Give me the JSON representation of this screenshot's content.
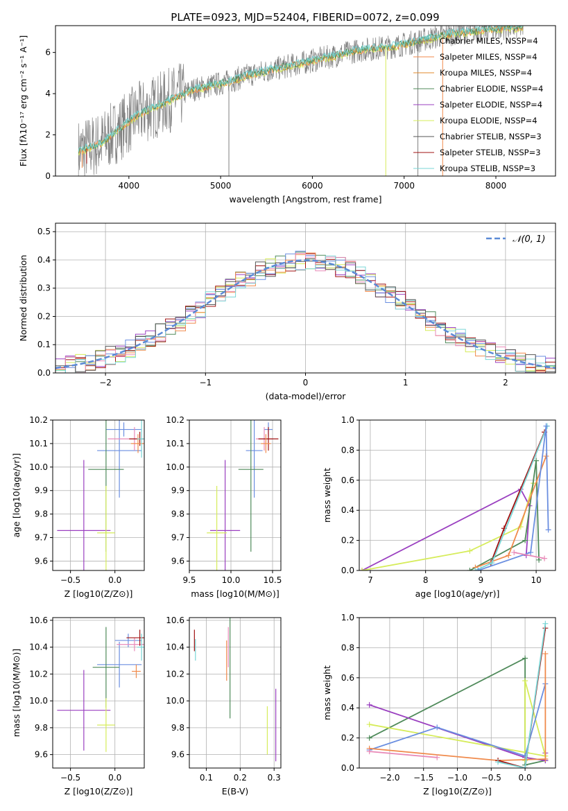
{
  "figure_title": "PLATE=0923, MJD=52404, FIBERID=0072, z=0.099",
  "colors": {
    "chabrier_miles": "#7f7f7f",
    "salpeter_miles": "#f08a4b",
    "kroupa_miles": "#e08a2a",
    "chabrier_elodie": "#4f8a5a",
    "salpeter_elodie": "#9a3fc0",
    "kroupa_elodie": "#d6ec5a",
    "chabrier_stelib": "#555555",
    "salpeter_stelib": "#a01010",
    "kroupa_stelib": "#7ad6d6",
    "blue": "#6a8ee0",
    "pink": "#e88ab8",
    "normal": "#5b8ad6"
  },
  "chart_data": [
    {
      "id": "spectrum",
      "type": "line",
      "xlabel": "wavelength [Angstrom, rest frame]",
      "ylabel": "Flux [fλ10⁻¹⁷ erg cm⁻² s⁻¹ A⁻¹]",
      "xlim": [
        3200,
        8650
      ],
      "ylim": [
        0,
        7.3
      ],
      "xticks": [
        4000,
        5000,
        6000,
        7000,
        8000
      ],
      "yticks": [
        0,
        2,
        4,
        6
      ],
      "legend_position": "top-right",
      "legend": [
        {
          "label": "Chabrier MILES, NSSP=4",
          "color": "chabrier_miles"
        },
        {
          "label": "Salpeter MILES, NSSP=4",
          "color": "salpeter_miles"
        },
        {
          "label": "Kroupa MILES, NSSP=4",
          "color": "kroupa_miles"
        },
        {
          "label": "Chabrier ELODIE, NSSP=4",
          "color": "chabrier_elodie"
        },
        {
          "label": "Salpeter ELODIE, NSSP=4",
          "color": "salpeter_elodie"
        },
        {
          "label": "Kroupa ELODIE, NSSP=4",
          "color": "kroupa_elodie"
        },
        {
          "label": "Chabrier STELIB, NSSP=3",
          "color": "chabrier_stelib"
        },
        {
          "label": "Salpeter STELIB, NSSP=3",
          "color": "salpeter_stelib"
        },
        {
          "label": "Kroupa STELIB, NSSP=3",
          "color": "kroupa_stelib"
        }
      ],
      "continuum": {
        "x": [
          3450,
          3700,
          3900,
          4100,
          4300,
          4500,
          4700,
          4900,
          5100,
          5300,
          5500,
          5700,
          5900,
          6100,
          6300,
          6500,
          6700,
          6900,
          7100,
          7300,
          7500,
          7700,
          7900,
          8100,
          8300
        ],
        "y": [
          1.2,
          1.6,
          2.3,
          3.0,
          3.4,
          3.8,
          4.2,
          4.4,
          4.6,
          4.9,
          5.1,
          5.3,
          5.5,
          5.7,
          5.9,
          6.1,
          6.2,
          6.3,
          6.5,
          6.7,
          6.9,
          7.0,
          7.1,
          7.2,
          7.2
        ]
      },
      "spikes": [
        {
          "x": 3490,
          "y": 0.4,
          "color": "salpeter_miles"
        },
        {
          "x": 3540,
          "y": 0.6,
          "color": "salpeter_stelib"
        },
        {
          "x": 5090,
          "y": 0,
          "color": "chabrier_miles"
        },
        {
          "x": 6800,
          "y": 0,
          "color": "kroupa_elodie"
        },
        {
          "x": 7150,
          "y": 0,
          "color": "chabrier_miles"
        },
        {
          "x": 7420,
          "y": 0,
          "color": "salpeter_miles"
        }
      ]
    },
    {
      "id": "residuals",
      "type": "histogram",
      "xlabel": "(data-model)/error",
      "ylabel": "Normed distribution",
      "xlim": [
        -2.5,
        2.5
      ],
      "ylim": [
        0,
        0.53
      ],
      "xticks": [
        -2,
        -1,
        0,
        1,
        2
      ],
      "yticks": [
        0.0,
        0.1,
        0.2,
        0.3,
        0.4,
        0.5
      ],
      "legend_position": "top-right",
      "legend_label": "𝒩(0, 1)",
      "bin_width": 0.1
    },
    {
      "id": "age_vs_Z",
      "type": "errorbar",
      "xlabel": "Z [log10(Z/Z⊙)]",
      "ylabel": "age  [log10(age/yr)]",
      "xlim": [
        -0.7,
        0.33
      ],
      "ylim": [
        9.56,
        10.2
      ],
      "xticks": [
        -0.5,
        0.0
      ],
      "yticks": [
        9.6,
        9.7,
        9.8,
        9.9,
        10.0,
        10.1,
        10.2
      ],
      "points": [
        {
          "x": 0.1,
          "y": 10.16,
          "xerr": 0.2,
          "yerr": 0.03,
          "color": "blue"
        },
        {
          "x": 0.05,
          "y": 10.07,
          "xerr": 0.25,
          "yerr": 0.2,
          "color": "blue"
        },
        {
          "x": 0.22,
          "y": 10.12,
          "xerr": 0.3,
          "yerr": 0.05,
          "color": "pink"
        },
        {
          "x": 0.28,
          "y": 10.12,
          "xerr": 0.12,
          "yerr": 0.03,
          "color": "salpeter_stelib"
        },
        {
          "x": 0.26,
          "y": 10.1,
          "xerr": 0.08,
          "yerr": 0.04,
          "color": "salpeter_miles"
        },
        {
          "x": 0.3,
          "y": 10.12,
          "xerr": 0.05,
          "yerr": 0.08,
          "color": "kroupa_stelib"
        },
        {
          "x": -0.1,
          "y": 9.99,
          "xerr": 0.2,
          "yerr": 0.35,
          "color": "chabrier_elodie"
        },
        {
          "x": -0.35,
          "y": 9.73,
          "xerr": 0.3,
          "yerr": 0.3,
          "color": "salpeter_elodie"
        },
        {
          "x": -0.1,
          "y": 9.72,
          "xerr": 0.1,
          "yerr": 0.2,
          "color": "kroupa_elodie"
        }
      ]
    },
    {
      "id": "age_vs_mass",
      "type": "errorbar",
      "xlabel": "mass [log10(M/M⊙)]",
      "ylabel": "",
      "xlim": [
        9.5,
        10.6
      ],
      "ylim": [
        9.56,
        10.2
      ],
      "xticks": [
        9.5,
        10.0,
        10.5
      ],
      "yticks": [
        9.6,
        9.7,
        9.8,
        9.9,
        10.0,
        10.1,
        10.2
      ],
      "points": [
        {
          "x": 10.45,
          "y": 10.16,
          "xerr": 0.05,
          "yerr": 0.03,
          "color": "blue"
        },
        {
          "x": 10.28,
          "y": 10.07,
          "xerr": 0.1,
          "yerr": 0.2,
          "color": "blue"
        },
        {
          "x": 10.4,
          "y": 10.12,
          "xerr": 0.1,
          "yerr": 0.05,
          "color": "pink"
        },
        {
          "x": 10.45,
          "y": 10.12,
          "xerr": 0.12,
          "yerr": 0.05,
          "color": "salpeter_stelib"
        },
        {
          "x": 10.42,
          "y": 10.1,
          "xerr": 0.06,
          "yerr": 0.04,
          "color": "salpeter_miles"
        },
        {
          "x": 10.24,
          "y": 9.99,
          "xerr": 0.15,
          "yerr": 0.35,
          "color": "chabrier_elodie"
        },
        {
          "x": 9.93,
          "y": 9.73,
          "xerr": 0.18,
          "yerr": 0.3,
          "color": "salpeter_elodie"
        },
        {
          "x": 9.83,
          "y": 9.72,
          "xerr": 0.12,
          "yerr": 0.2,
          "color": "kroupa_elodie"
        }
      ]
    },
    {
      "id": "mass_weight_vs_age",
      "type": "line",
      "xlabel": "age  [log10(age/yr)]",
      "ylabel": "mass weight",
      "xlim": [
        6.8,
        10.35
      ],
      "ylim": [
        0,
        1.0
      ],
      "xticks": [
        7,
        8,
        9,
        10
      ],
      "yticks": [
        0.0,
        0.2,
        0.4,
        0.6,
        0.8,
        1.0
      ],
      "series": [
        {
          "color": "salpeter_elodie",
          "x": [
            6.85,
            9.72,
            9.88,
            9.82
          ],
          "y": [
            0.0,
            0.54,
            0.43,
            0.1
          ]
        },
        {
          "color": "kroupa_elodie",
          "x": [
            6.85,
            8.8,
            9.72,
            9.95
          ],
          "y": [
            0.0,
            0.13,
            0.29,
            0.58
          ]
        },
        {
          "color": "salpeter_stelib",
          "x": [
            9.18,
            9.42,
            10.15
          ],
          "y": [
            0.05,
            0.28,
            0.92
          ]
        },
        {
          "color": "chabrier_elodie",
          "x": [
            8.8,
            9.8,
            10.0,
            10.05
          ],
          "y": [
            0.0,
            0.2,
            0.73,
            0.07
          ]
        },
        {
          "color": "salpeter_miles",
          "x": [
            8.9,
            9.5,
            10.18
          ],
          "y": [
            0.02,
            0.1,
            0.76
          ]
        },
        {
          "color": "kroupa_stelib",
          "x": [
            8.9,
            9.2,
            10.2
          ],
          "y": [
            0.0,
            0.05,
            0.96
          ]
        },
        {
          "color": "blue",
          "x": [
            8.95,
            9.9,
            10.18,
            10.22
          ],
          "y": [
            0.0,
            0.12,
            0.96,
            0.27
          ]
        },
        {
          "color": "pink",
          "x": [
            9.6,
            10.15
          ],
          "y": [
            0.12,
            0.08
          ]
        }
      ]
    },
    {
      "id": "mass_vs_Z",
      "type": "errorbar",
      "xlabel": "Z [log10(Z/Z⊙)]",
      "ylabel": "mass [log10(M/M⊙)]",
      "xlim": [
        -0.7,
        0.33
      ],
      "ylim": [
        9.5,
        10.62
      ],
      "xticks": [
        -0.5,
        0.0
      ],
      "yticks": [
        9.6,
        9.8,
        10.0,
        10.2,
        10.4,
        10.6
      ],
      "points": [
        {
          "x": 0.15,
          "y": 10.45,
          "xerr": 0.15,
          "yerr": 0.05,
          "color": "blue"
        },
        {
          "x": 0.05,
          "y": 10.27,
          "xerr": 0.25,
          "yerr": 0.17,
          "color": "blue"
        },
        {
          "x": 0.22,
          "y": 10.42,
          "xerr": 0.2,
          "yerr": 0.05,
          "color": "pink"
        },
        {
          "x": 0.28,
          "y": 10.47,
          "xerr": 0.15,
          "yerr": 0.06,
          "color": "salpeter_stelib"
        },
        {
          "x": 0.24,
          "y": 10.22,
          "xerr": 0.05,
          "yerr": 0.05,
          "color": "salpeter_miles"
        },
        {
          "x": 0.3,
          "y": 10.4,
          "xerr": 0.05,
          "yerr": 0.1,
          "color": "kroupa_stelib"
        },
        {
          "x": -0.1,
          "y": 10.25,
          "xerr": 0.15,
          "yerr": 0.3,
          "color": "chabrier_elodie"
        },
        {
          "x": -0.35,
          "y": 9.93,
          "xerr": 0.3,
          "yerr": 0.3,
          "color": "salpeter_elodie"
        },
        {
          "x": -0.1,
          "y": 9.82,
          "xerr": 0.1,
          "yerr": 0.2,
          "color": "kroupa_elodie"
        }
      ]
    },
    {
      "id": "mass_vs_EBV",
      "type": "errorbar",
      "xlabel": "E(B-V)",
      "ylabel": "",
      "xlim": [
        0.05,
        0.32
      ],
      "ylim": [
        9.5,
        10.62
      ],
      "xticks": [
        0.1,
        0.2,
        0.3
      ],
      "yticks": [
        9.6,
        9.8,
        10.0,
        10.2,
        10.4,
        10.6
      ],
      "points": [
        {
          "x": 0.065,
          "y": 10.45,
          "xerr": 0,
          "yerr": 0.08,
          "color": "salpeter_stelib"
        },
        {
          "x": 0.068,
          "y": 10.38,
          "xerr": 0,
          "yerr": 0.08,
          "color": "kroupa_stelib"
        },
        {
          "x": 0.16,
          "y": 10.3,
          "xerr": 0,
          "yerr": 0.15,
          "color": "salpeter_miles"
        },
        {
          "x": 0.165,
          "y": 10.4,
          "xerr": 0,
          "yerr": 0.15,
          "color": "pink"
        },
        {
          "x": 0.17,
          "y": 10.25,
          "xerr": 0,
          "yerr": 0.38,
          "color": "chabrier_elodie"
        },
        {
          "x": 0.28,
          "y": 9.78,
          "xerr": 0,
          "yerr": 0.18,
          "color": "kroupa_elodie"
        },
        {
          "x": 0.305,
          "y": 9.82,
          "xerr": 0,
          "yerr": 0.27,
          "color": "salpeter_elodie"
        }
      ]
    },
    {
      "id": "mass_weight_vs_Z",
      "type": "line",
      "xlabel": "Z [log10(Z/Z⊙)]",
      "ylabel": "mass weight",
      "xlim": [
        -2.45,
        0.45
      ],
      "ylim": [
        0,
        1.0
      ],
      "xticks": [
        -2.0,
        -1.5,
        -1.0,
        -0.5,
        0.0
      ],
      "yticks": [
        0.0,
        0.2,
        0.4,
        0.6,
        0.8,
        1.0
      ],
      "series": [
        {
          "color": "chabrier_elodie",
          "x": [
            -2.3,
            0.0,
            0.0,
            0.3
          ],
          "y": [
            0.2,
            0.73,
            0.02,
            0.05
          ]
        },
        {
          "color": "salpeter_elodie",
          "x": [
            -2.3,
            0.0,
            0.3,
            0.3
          ],
          "y": [
            0.42,
            0.07,
            0.05,
            0.1
          ]
        },
        {
          "color": "kroupa_elodie",
          "x": [
            -2.3,
            0.3,
            0.0,
            0.0
          ],
          "y": [
            0.29,
            0.08,
            0.58,
            0.05
          ]
        },
        {
          "color": "blue",
          "x": [
            -2.3,
            -1.3,
            0.0,
            0.3
          ],
          "y": [
            0.12,
            0.27,
            0.08,
            0.56
          ]
        },
        {
          "color": "salpeter_miles",
          "x": [
            -2.3,
            -0.4,
            0.3,
            0.3
          ],
          "y": [
            0.13,
            0.05,
            0.06,
            0.76
          ]
        },
        {
          "color": "salpeter_stelib",
          "x": [
            -0.4,
            0.0,
            0.3
          ],
          "y": [
            0.05,
            0.0,
            0.93
          ]
        },
        {
          "color": "kroupa_stelib",
          "x": [
            -0.4,
            0.0,
            0.3
          ],
          "y": [
            0.04,
            0.0,
            0.96
          ]
        },
        {
          "color": "pink",
          "x": [
            -2.3,
            -1.3
          ],
          "y": [
            0.11,
            0.07
          ]
        }
      ]
    }
  ]
}
